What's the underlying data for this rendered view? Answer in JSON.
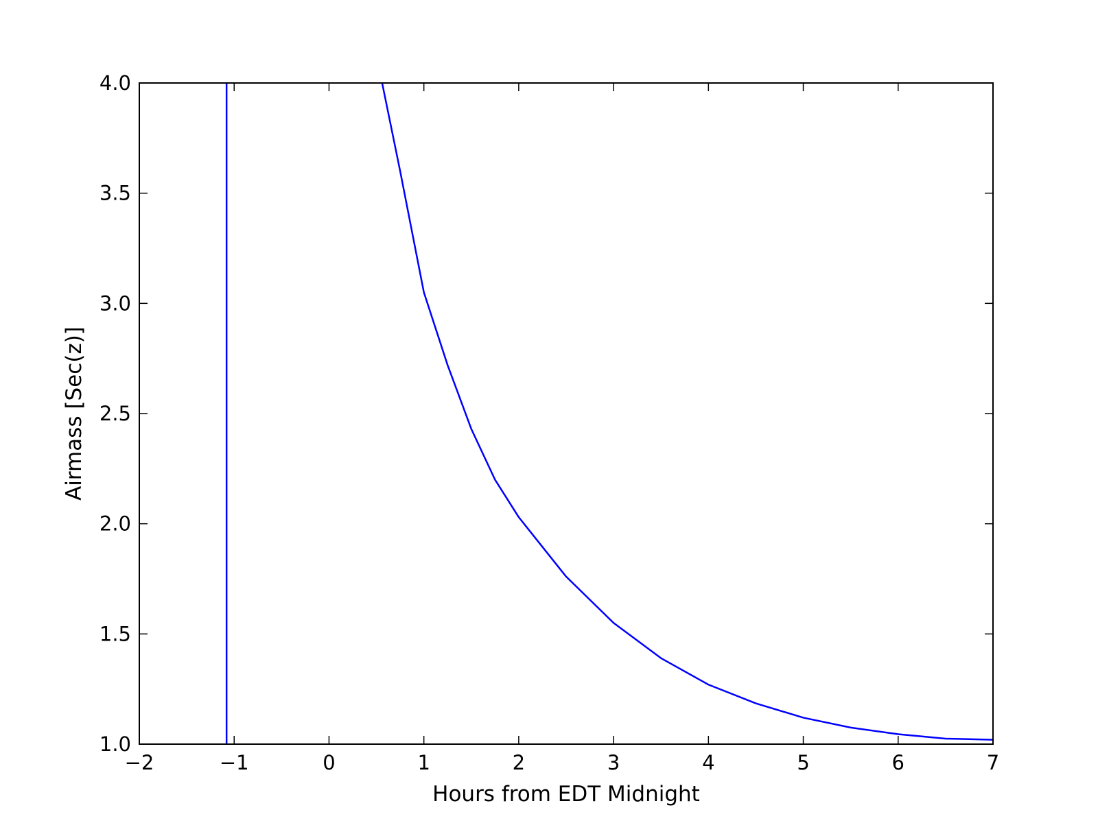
{
  "chart_data": {
    "type": "line",
    "xlabel": "Hours from EDT Midnight",
    "ylabel": "Airmass [Sec(z)]",
    "xlim": [
      -2,
      7
    ],
    "ylim": [
      1.0,
      4.0
    ],
    "grid": false,
    "x_ticks": [
      -2,
      -1,
      0,
      1,
      2,
      3,
      4,
      5,
      6,
      7
    ],
    "x_tick_labels": [
      "−2",
      "−1",
      "0",
      "1",
      "2",
      "3",
      "4",
      "5",
      "6",
      "7"
    ],
    "y_ticks": [
      1.0,
      1.5,
      2.0,
      2.5,
      3.0,
      3.5,
      4.0
    ],
    "y_tick_labels": [
      "1.0",
      "1.5",
      "2.0",
      "2.5",
      "3.0",
      "3.5",
      "4.0"
    ],
    "series": [
      {
        "color": "#0000ff",
        "x": [
          -1.08,
          -1.08
        ],
        "y": [
          4.0,
          1.0
        ]
      },
      {
        "color": "#0000ff",
        "x": [
          0.56,
          0.75,
          1.0,
          1.25,
          1.5,
          1.75,
          2.0,
          2.5,
          3.0,
          3.5,
          4.0,
          4.5,
          5.0,
          5.5,
          6.0,
          6.5,
          7.0
        ],
        "y": [
          4.0,
          3.6,
          3.05,
          2.72,
          2.43,
          2.2,
          2.03,
          1.76,
          1.55,
          1.39,
          1.27,
          1.185,
          1.12,
          1.075,
          1.045,
          1.025,
          1.02
        ]
      }
    ]
  }
}
